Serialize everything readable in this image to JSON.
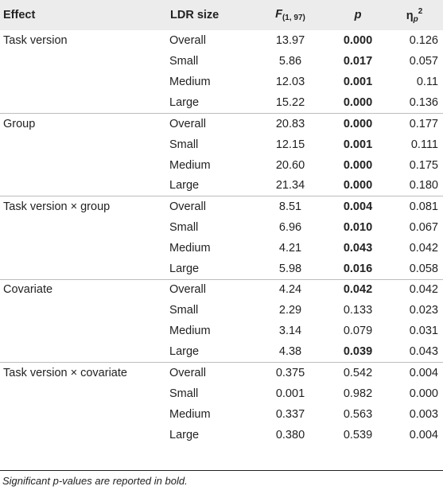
{
  "headers": {
    "effect": "Effect",
    "ldr_size": "LDR size",
    "f_main": "F",
    "f_sub": "(1, 97)",
    "p": "p",
    "eta_main": "η",
    "eta_sub": "p",
    "eta_sup": "2"
  },
  "rows": [
    {
      "effect": "Task version",
      "ldr": "Overall",
      "f": "13.97",
      "p": "0.000",
      "sig": true,
      "eta": "0.126"
    },
    {
      "effect": "",
      "ldr": "Small",
      "f": "5.86",
      "p": "0.017",
      "sig": true,
      "eta": "0.057"
    },
    {
      "effect": "",
      "ldr": "Medium",
      "f": "12.03",
      "p": "0.001",
      "sig": true,
      "eta": "0.11"
    },
    {
      "effect": "",
      "ldr": "Large",
      "f": "15.22",
      "p": "0.000",
      "sig": true,
      "eta": "0.136"
    },
    {
      "effect": "Group",
      "ldr": "Overall",
      "f": "20.83",
      "p": "0.000",
      "sig": true,
      "eta": "0.177"
    },
    {
      "effect": "",
      "ldr": "Small",
      "f": "12.15",
      "p": "0.001",
      "sig": true,
      "eta": "0.111"
    },
    {
      "effect": "",
      "ldr": "Medium",
      "f": "20.60",
      "p": "0.000",
      "sig": true,
      "eta": "0.175"
    },
    {
      "effect": "",
      "ldr": "Large",
      "f": "21.34",
      "p": "0.000",
      "sig": true,
      "eta": "0.180"
    },
    {
      "effect": "Task version × group",
      "ldr": "Overall",
      "f": "8.51",
      "p": "0.004",
      "sig": true,
      "eta": "0.081"
    },
    {
      "effect": "",
      "ldr": "Small",
      "f": "6.96",
      "p": "0.010",
      "sig": true,
      "eta": "0.067"
    },
    {
      "effect": "",
      "ldr": "Medium",
      "f": "4.21",
      "p": "0.043",
      "sig": true,
      "eta": "0.042"
    },
    {
      "effect": "",
      "ldr": "Large",
      "f": "5.98",
      "p": "0.016",
      "sig": true,
      "eta": "0.058"
    },
    {
      "effect": "Covariate",
      "ldr": "Overall",
      "f": "4.24",
      "p": "0.042",
      "sig": true,
      "eta": "0.042"
    },
    {
      "effect": "",
      "ldr": "Small",
      "f": "2.29",
      "p": "0.133",
      "sig": false,
      "eta": "0.023"
    },
    {
      "effect": "",
      "ldr": "Medium",
      "f": "3.14",
      "p": "0.079",
      "sig": false,
      "eta": "0.031"
    },
    {
      "effect": "",
      "ldr": "Large",
      "f": "4.38",
      "p": "0.039",
      "sig": true,
      "eta": "0.043"
    },
    {
      "effect": "Task version × covariate",
      "ldr": "Overall",
      "f": "0.375",
      "p": "0.542",
      "sig": false,
      "eta": "0.004"
    },
    {
      "effect": "",
      "ldr": "Small",
      "f": "0.001",
      "p": "0.982",
      "sig": false,
      "eta": "0.000"
    },
    {
      "effect": "",
      "ldr": "Medium",
      "f": "0.337",
      "p": "0.563",
      "sig": false,
      "eta": "0.003"
    },
    {
      "effect": "",
      "ldr": "Large",
      "f": "0.380",
      "p": "0.539",
      "sig": false,
      "eta": "0.004"
    }
  ],
  "note": "Significant p-values are reported in bold."
}
